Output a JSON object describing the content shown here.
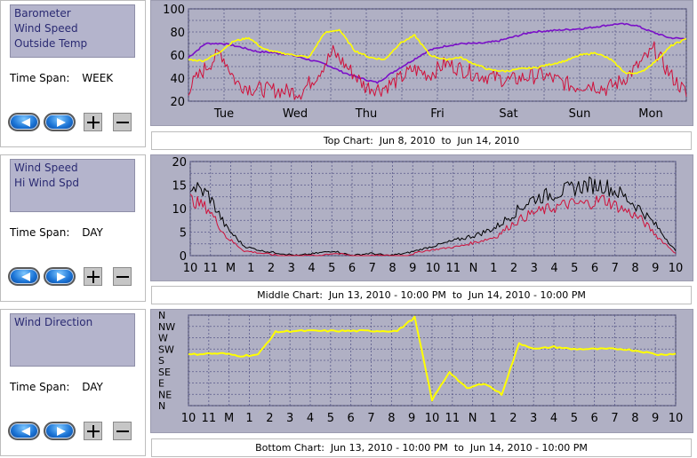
{
  "panels": [
    {
      "id": "top",
      "series": [
        "Barometer",
        "Wind Speed",
        "Outside Temp"
      ],
      "time_span_label": "Time Span:",
      "time_span_value": "WEEK",
      "caption": "Top Chart:  Jun 8, 2010  to  Jun 14, 2010"
    },
    {
      "id": "middle",
      "series": [
        "Wind Speed",
        "Hi Wind Spd"
      ],
      "time_span_label": "Time Span:",
      "time_span_value": "DAY",
      "caption": "Middle Chart:  Jun 13, 2010 - 10:00 PM  to  Jun 14, 2010 - 10:00 PM"
    },
    {
      "id": "bottom",
      "series": [
        "Wind Direction"
      ],
      "time_span_label": "Time Span:",
      "time_span_value": "DAY",
      "caption": "Bottom Chart:  Jun 13, 2010 - 10:00 PM  to  Jun 14, 2010 - 10:00 PM"
    }
  ],
  "buttons": {
    "back_icon": "left-arrow-icon",
    "forward_icon": "right-arrow-icon",
    "zoom_in_icon": "plus-icon",
    "zoom_out_icon": "minus-icon"
  },
  "colors": {
    "plot_bg": "#b0b0c4",
    "grid": "#5a5a8a",
    "barometer": "#7a10c8",
    "wind": "#d0103a",
    "temp": "#ffff00",
    "hi_wind": "#000000"
  },
  "chart_data": [
    {
      "type": "line",
      "ylim": [
        20,
        100
      ],
      "yticks": [
        20,
        40,
        60,
        80,
        100
      ],
      "xticklabels": [
        "Tue",
        "Wed",
        "Thu",
        "Fri",
        "Sat",
        "Sun",
        "Mon"
      ],
      "series": [
        {
          "name": "Barometer",
          "color": "#7a10c8",
          "values": [
            58,
            70,
            70,
            67,
            63,
            62,
            60,
            56,
            52,
            45,
            40,
            36,
            46,
            55,
            64,
            68,
            70,
            70,
            72,
            76,
            80,
            81,
            82,
            83,
            85,
            87,
            86,
            80,
            75,
            74
          ]
        },
        {
          "name": "Wind Speed",
          "color": "#d0103a",
          "values": [
            28,
            45,
            60,
            33,
            28,
            27,
            26,
            25,
            40,
            60,
            45,
            30,
            28,
            35,
            45,
            40,
            50,
            45,
            40,
            38,
            35,
            38,
            40,
            35,
            30,
            32,
            28,
            35,
            48,
            62,
            40,
            24
          ]
        },
        {
          "name": "Outside Temp",
          "color": "#ffff00",
          "values": [
            56,
            55,
            62,
            72,
            75,
            65,
            62,
            60,
            58,
            79,
            82,
            64,
            58,
            56,
            70,
            77,
            60,
            56,
            58,
            52,
            47,
            46,
            48,
            49,
            52,
            55,
            60,
            62,
            56,
            44,
            45,
            55,
            68,
            74
          ]
        }
      ]
    },
    {
      "type": "line",
      "ylim": [
        0,
        20
      ],
      "yticks": [
        0,
        5,
        10,
        15,
        20
      ],
      "xticklabels": [
        "10",
        "11",
        "M",
        "1",
        "2",
        "3",
        "4",
        "5",
        "6",
        "7",
        "8",
        "9",
        "10",
        "11",
        "N",
        "1",
        "2",
        "3",
        "4",
        "5",
        "6",
        "7",
        "8",
        "9",
        "10"
      ],
      "series": [
        {
          "name": "Hi Wind Spd",
          "color": "#000000",
          "values": [
            15,
            13,
            6,
            2,
            1,
            0.5,
            0,
            0.5,
            1,
            0,
            0.5,
            0,
            0.5,
            1.5,
            2.5,
            3.5,
            4.5,
            6,
            9,
            12,
            13,
            14,
            15,
            15,
            13,
            10,
            6,
            1
          ]
        },
        {
          "name": "Wind Speed",
          "color": "#d0103a",
          "values": [
            12,
            10,
            4,
            1,
            0.5,
            0,
            0,
            0,
            0.5,
            0,
            0,
            0,
            0,
            1,
            1.5,
            2,
            3,
            4,
            7,
            9,
            10,
            11,
            11,
            12,
            10,
            8,
            4,
            0.5
          ]
        }
      ]
    },
    {
      "type": "line",
      "yticklabels": [
        "N",
        "NW",
        "W",
        "SW",
        "S",
        "SE",
        "E",
        "NE",
        "N"
      ],
      "xticklabels": [
        "10",
        "11",
        "M",
        "1",
        "2",
        "3",
        "4",
        "5",
        "6",
        "7",
        "8",
        "9",
        "10",
        "11",
        "N",
        "1",
        "2",
        "3",
        "4",
        "5",
        "6",
        "7",
        "8",
        "9",
        "10"
      ],
      "series": [
        {
          "name": "Wind Direction",
          "color": "#ffff00",
          "values": [
            4.5,
            4.6,
            4.6,
            4.4,
            4.5,
            6.5,
            6.6,
            6.6,
            6.6,
            6.6,
            6.6,
            6.6,
            6.6,
            7.8,
            0.5,
            3.0,
            1.5,
            2.0,
            1.0,
            5.5,
            5.0,
            5.2,
            5.0,
            5.0,
            5.0,
            5.0,
            4.8,
            4.5,
            4.6
          ]
        }
      ]
    }
  ]
}
